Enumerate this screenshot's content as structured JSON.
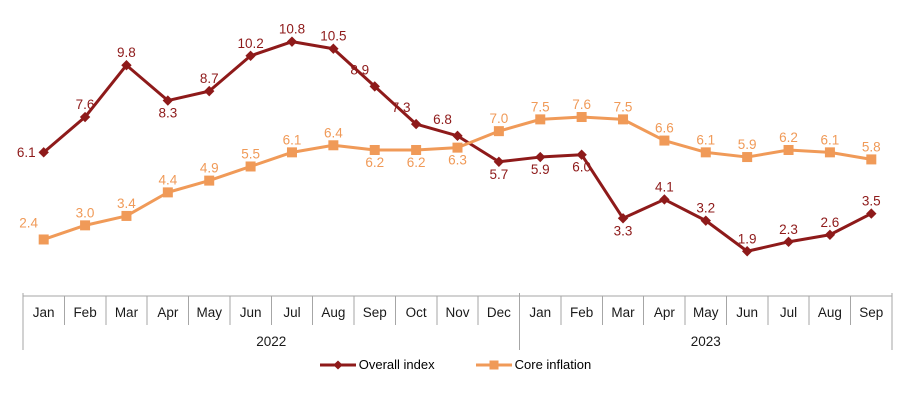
{
  "chart_data": {
    "type": "line",
    "x_groups": [
      {
        "year": "2022",
        "months": [
          "Jan",
          "Feb",
          "Mar",
          "Apr",
          "May",
          "Jun",
          "Jul",
          "Aug",
          "Sep",
          "Oct",
          "Nov",
          "Dec"
        ]
      },
      {
        "year": "2023",
        "months": [
          "Jan",
          "Feb",
          "Mar",
          "Apr",
          "May",
          "Jun",
          "Jul",
          "Aug",
          "Sep"
        ]
      }
    ],
    "series": [
      {
        "name": "Overall index",
        "color": "#8E1A1A",
        "marker": "diamond",
        "values": [
          6.1,
          7.6,
          9.8,
          8.3,
          8.7,
          10.2,
          10.8,
          10.5,
          8.9,
          7.3,
          6.8,
          5.7,
          5.9,
          6.0,
          3.3,
          4.1,
          3.2,
          1.9,
          2.3,
          2.6,
          3.5
        ],
        "label_placement": [
          "left",
          "above",
          "above",
          "below",
          "above",
          "above",
          "above",
          "above",
          "above-left",
          "above-left",
          "above-left",
          "below",
          "below",
          "below",
          "below",
          "above",
          "above",
          "above",
          "above",
          "above",
          "above"
        ]
      },
      {
        "name": "Core inflation",
        "color": "#F09A58",
        "marker": "square",
        "values": [
          2.4,
          3.0,
          3.4,
          4.4,
          4.9,
          5.5,
          6.1,
          6.4,
          6.2,
          6.2,
          6.3,
          7.0,
          7.5,
          7.6,
          7.5,
          6.6,
          6.1,
          5.9,
          6.2,
          6.1,
          5.8
        ],
        "label_placement": [
          "above-left",
          "above",
          "above",
          "above",
          "above",
          "above",
          "above",
          "above",
          "below",
          "below",
          "below",
          "above",
          "above",
          "above",
          "above",
          "above",
          "above",
          "above",
          "above",
          "above",
          "above"
        ]
      }
    ],
    "ylim": [
      0,
      12
    ],
    "grid": false,
    "legend_position": "bottom",
    "axis_line_color": "#A6A6A6",
    "text_color": "#1A1A1A",
    "value_decimals": 1
  }
}
